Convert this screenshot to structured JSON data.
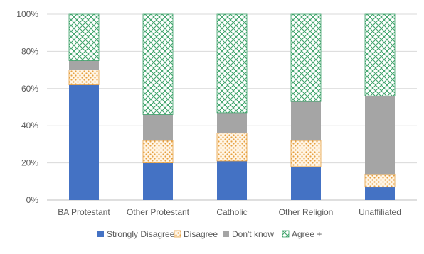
{
  "chart_data": {
    "type": "bar",
    "stacked": true,
    "categories": [
      "BA Protestant",
      "Other Protestant",
      "Catholic",
      "Other Religion",
      "Unaffiliated"
    ],
    "series": [
      {
        "name": "Strongly Disagree",
        "values": [
          62,
          20,
          21,
          18,
          7
        ],
        "color": "#4472C4",
        "pattern": "solid"
      },
      {
        "name": "Disagree",
        "values": [
          8,
          12,
          15,
          14,
          7
        ],
        "color": "#F4B183",
        "pattern": "dots"
      },
      {
        "name": "Don't know",
        "values": [
          5,
          14,
          11,
          21,
          42
        ],
        "color": "#A5A5A5",
        "pattern": "solid"
      },
      {
        "name": "Agree +",
        "values": [
          25,
          54,
          53,
          47,
          44
        ],
        "color": "#4CAF7D",
        "pattern": "crosshatch"
      }
    ],
    "yticks": [
      "0%",
      "20%",
      "40%",
      "60%",
      "80%",
      "100%"
    ],
    "ylim": [
      0,
      100
    ],
    "grid": true,
    "legend": "bottom",
    "title": "",
    "xlabel": "",
    "ylabel": ""
  }
}
